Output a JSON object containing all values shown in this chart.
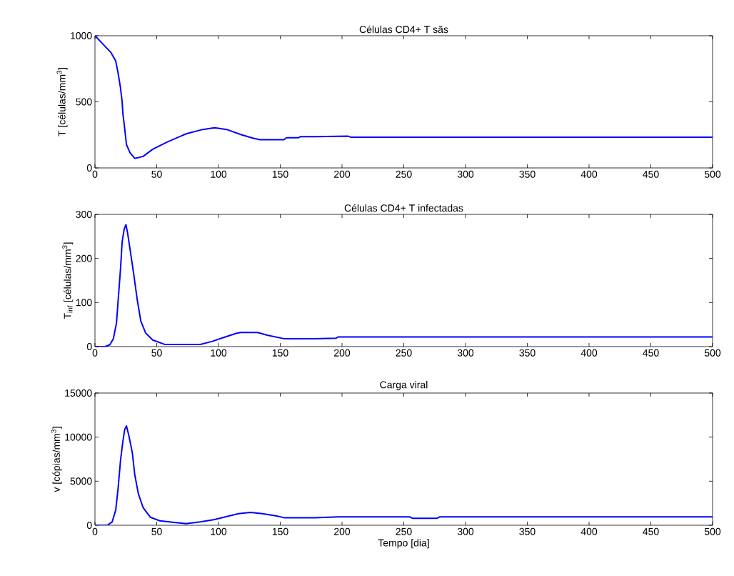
{
  "chart_data": [
    {
      "type": "line",
      "title": "Células CD4+ T sãs",
      "ylabel": "T [células/mm$^{3}$]",
      "color": "#0000ff",
      "x": [
        0,
        13,
        16.8,
        18.7,
        20.6,
        22,
        22.6,
        24,
        25.5,
        28.4,
        32.2,
        39,
        46.7,
        58.3,
        73.7,
        87.3,
        96.9,
        106.6,
        118,
        127.8,
        133.6,
        153,
        155,
        164.5,
        166.4,
        177.9,
        205,
        207,
        500
      ],
      "values": [
        1000,
        872,
        809,
        719,
        610,
        502,
        412,
        303,
        177,
        114,
        72,
        87,
        141,
        195,
        258,
        291,
        304,
        291,
        253,
        226,
        213,
        213,
        228,
        228,
        237,
        237,
        240,
        233,
        233
      ],
      "xlim": [
        0,
        500
      ],
      "ylim": [
        0,
        1000
      ],
      "xticks": [
        0,
        50,
        100,
        150,
        200,
        250,
        300,
        350,
        400,
        450,
        500
      ],
      "yticks": [
        0,
        500,
        1000
      ]
    },
    {
      "type": "line",
      "title": "Células CD4+ T infectadas",
      "ylabel": "T$_{inf}$ [células/mm$^{3}$]",
      "color": "#0000ff",
      "x": [
        0,
        8.1,
        12,
        14.9,
        17.4,
        18.7,
        20.7,
        22,
        23.6,
        25.1,
        26.4,
        28.4,
        31.3,
        34.2,
        37.1,
        41,
        46.7,
        56.4,
        85.3,
        95,
        104.6,
        114.3,
        118,
        131.7,
        139.4,
        152.9,
        178,
        195,
        197,
        500
      ],
      "values": [
        0,
        0,
        4,
        18,
        53,
        102,
        177,
        237,
        266,
        277,
        258,
        221,
        166,
        107,
        58,
        31,
        15,
        5,
        5,
        12,
        21,
        30,
        32,
        32,
        26,
        18,
        18,
        19,
        22,
        22
      ],
      "xlim": [
        0,
        500
      ],
      "ylim": [
        0,
        300
      ],
      "xticks": [
        0,
        50,
        100,
        150,
        200,
        250,
        300,
        350,
        400,
        450,
        500
      ],
      "yticks": [
        0,
        100,
        200,
        300
      ]
    },
    {
      "type": "line",
      "title": "Carga viral",
      "ylabel": "v [cópias/mm$^{3}$]",
      "xlabel": "Tempo [dia]",
      "color": "#0000ff",
      "x": [
        0,
        10,
        13.9,
        16.8,
        18.7,
        20.7,
        22.6,
        24.1,
        25.5,
        27.4,
        30.3,
        32.2,
        35.1,
        39,
        44.8,
        52.5,
        64.1,
        73.7,
        85.3,
        96.9,
        108.5,
        116.2,
        125.9,
        135.5,
        147.1,
        152.9,
        178,
        197,
        255,
        257,
        277,
        279,
        500
      ],
      "values": [
        0,
        0,
        377,
        1720,
        4140,
        7370,
        9520,
        10870,
        11270,
        10200,
        8180,
        5760,
        3600,
        1990,
        915,
        511,
        323,
        188,
        377,
        646,
        1050,
        1320,
        1450,
        1320,
        1050,
        860,
        860,
        950,
        950,
        800,
        800,
        950,
        950
      ],
      "xlim": [
        0,
        500
      ],
      "ylim": [
        0,
        15000
      ],
      "xticks": [
        0,
        50,
        100,
        150,
        200,
        250,
        300,
        350,
        400,
        450,
        500
      ],
      "yticks": [
        0,
        5000,
        10000,
        15000
      ]
    }
  ]
}
